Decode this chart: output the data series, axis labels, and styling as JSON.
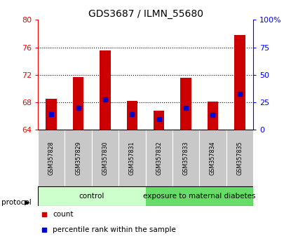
{
  "title": "GDS3687 / ILMN_55680",
  "samples": [
    "GSM357828",
    "GSM357829",
    "GSM357830",
    "GSM357831",
    "GSM357832",
    "GSM357833",
    "GSM357834",
    "GSM357835"
  ],
  "bar_tops": [
    68.5,
    71.7,
    75.5,
    68.2,
    66.8,
    71.6,
    68.1,
    77.8
  ],
  "bar_base": 64,
  "blue_dot_y": [
    66.3,
    67.2,
    68.4,
    66.3,
    65.5,
    67.2,
    66.2,
    69.2
  ],
  "ylim": [
    64,
    80
  ],
  "ylim_right": [
    0,
    100
  ],
  "yticks_left": [
    64,
    68,
    72,
    76,
    80
  ],
  "yticks_right": [
    0,
    25,
    50,
    75,
    100
  ],
  "bar_color": "#cc0000",
  "blue_color": "#0000cc",
  "control_samples": 4,
  "control_label": "control",
  "treatment_label": "exposure to maternal diabetes",
  "control_bg": "#ccffcc",
  "treatment_bg": "#66dd66",
  "protocol_label": "protocol",
  "legend_count": "count",
  "legend_pct": "percentile rank within the sample",
  "tick_bg": "#c8c8c8",
  "bar_width": 0.4,
  "title_fontsize": 10
}
